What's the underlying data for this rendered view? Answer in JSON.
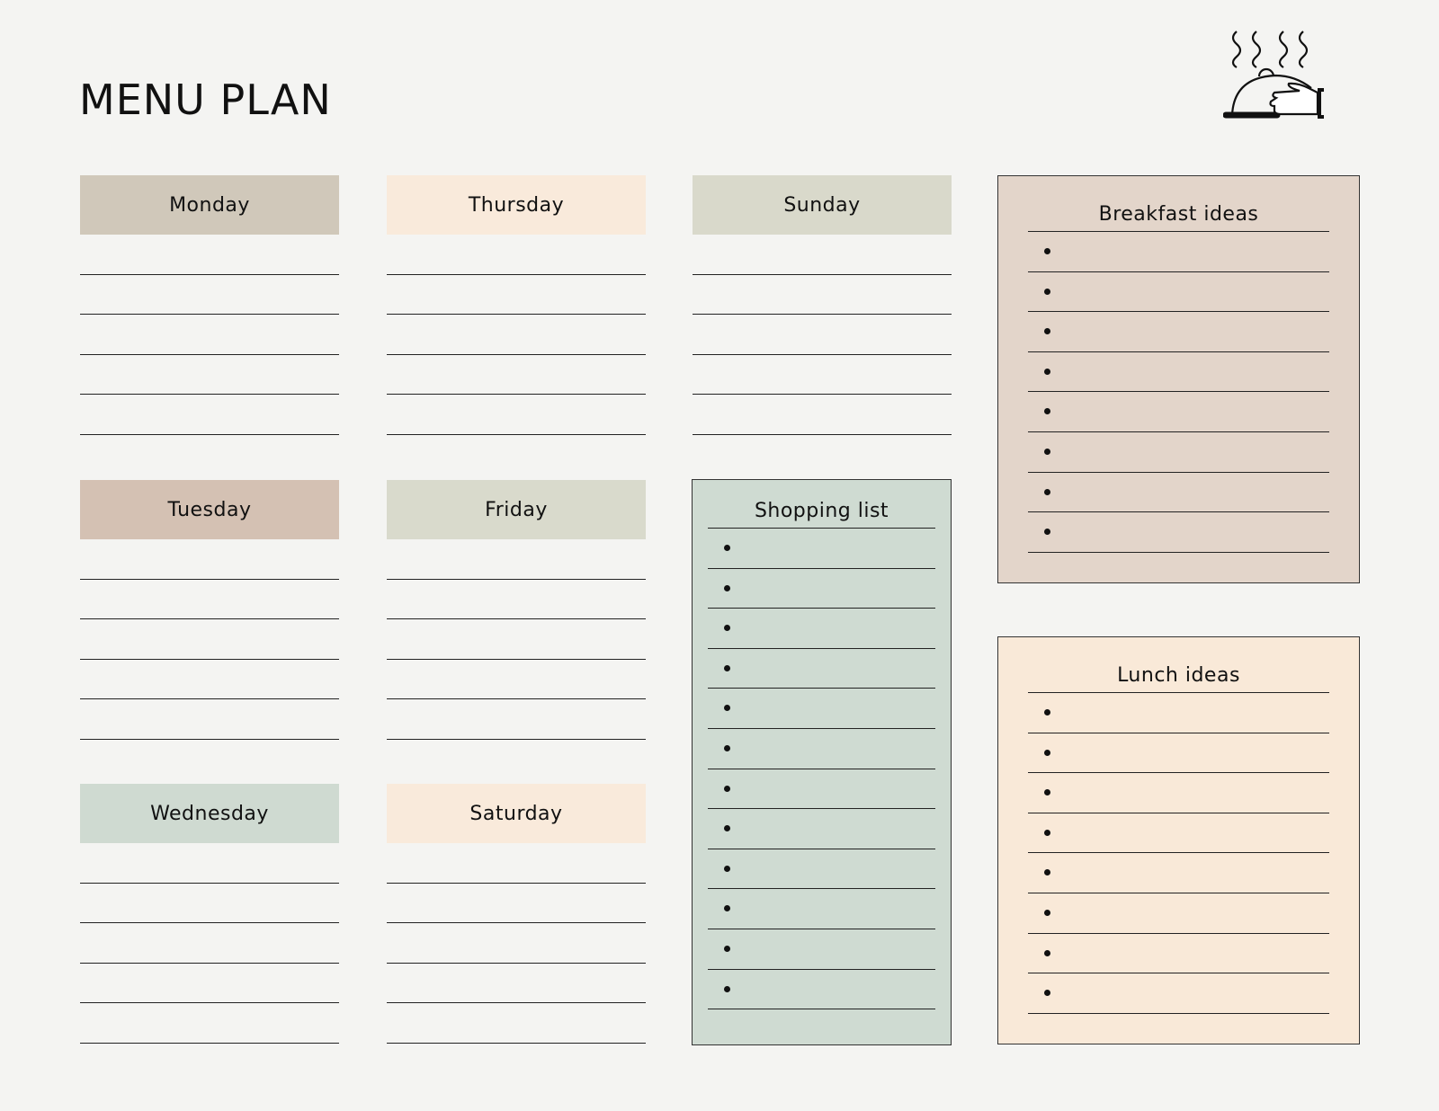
{
  "title": "MENU PLAN",
  "icon": "serving-cloche-icon",
  "days": [
    {
      "label": "Monday",
      "color": "#d0c8ba",
      "lines": 5
    },
    {
      "label": "Tuesday",
      "color": "#d4c1b3",
      "lines": 5
    },
    {
      "label": "Wednesday",
      "color": "#cfdad1",
      "lines": 5
    },
    {
      "label": "Thursday",
      "color": "#f9eadb",
      "lines": 5
    },
    {
      "label": "Friday",
      "color": "#d9dacc",
      "lines": 5
    },
    {
      "label": "Saturday",
      "color": "#f9eadb",
      "lines": 5
    },
    {
      "label": "Sunday",
      "color": "#d9d9cb",
      "lines": 5
    }
  ],
  "lists": {
    "shopping": {
      "title": "Shopping list",
      "color": "#cfdbd2",
      "items": 12
    },
    "breakfast": {
      "title": "Breakfast ideas",
      "color": "#e3d5ca",
      "items": 8
    },
    "lunch": {
      "title": "Lunch ideas",
      "color": "#f9e9d8",
      "items": 8
    }
  }
}
